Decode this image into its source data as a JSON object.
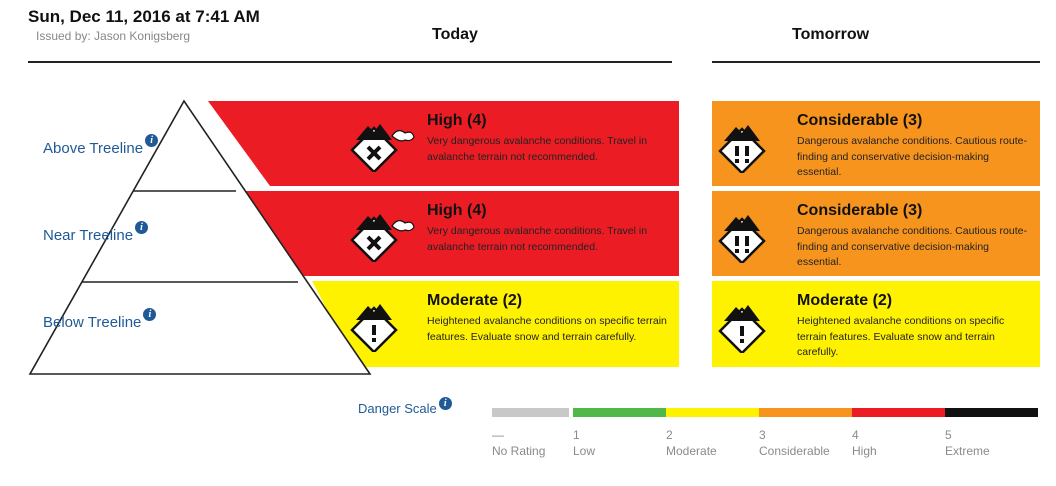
{
  "header": {
    "date": "Sun, Dec 11, 2016 at 7:41 AM",
    "issued_by": "Issued by: Jason Konigsberg"
  },
  "columns": {
    "today": "Today",
    "tomorrow": "Tomorrow"
  },
  "bands": {
    "above": "Above Treeline",
    "near": "Near Treeline",
    "below": "Below Treeline",
    "info_glyph": "i"
  },
  "levels": {
    "high": {
      "title": "High (4)",
      "desc": "Very dangerous avalanche conditions. Travel in avalanche terrain not recommended.",
      "color": "#ec1c24",
      "icon": "danger-x-icon"
    },
    "considerable": {
      "title": "Considerable (3)",
      "desc": "Dangerous avalanche conditions. Cautious route-finding and conservative decision-making essential.",
      "color": "#f7941d",
      "icon": "danger-double-exclamation-icon"
    },
    "moderate": {
      "title": "Moderate (2)",
      "desc": "Heightened avalanche conditions on specific terrain features. Evaluate snow and terrain carefully.",
      "color": "#fff200",
      "icon": "danger-exclamation-icon"
    }
  },
  "today": {
    "above": "high",
    "near": "high",
    "below": "moderate"
  },
  "tomorrow": {
    "above": "considerable",
    "near": "considerable",
    "below": "moderate"
  },
  "danger_scale": {
    "label": "Danger Scale",
    "levels": [
      {
        "num": "—",
        "name": "No Rating",
        "color": "#c8c8c8"
      },
      {
        "num": "1",
        "name": "Low",
        "color": "#50b848"
      },
      {
        "num": "2",
        "name": "Moderate",
        "color": "#fff200"
      },
      {
        "num": "3",
        "name": "Considerable",
        "color": "#f7941d"
      },
      {
        "num": "4",
        "name": "High",
        "color": "#ec1c24"
      },
      {
        "num": "5",
        "name": "Extreme",
        "color": "#111111"
      }
    ]
  }
}
